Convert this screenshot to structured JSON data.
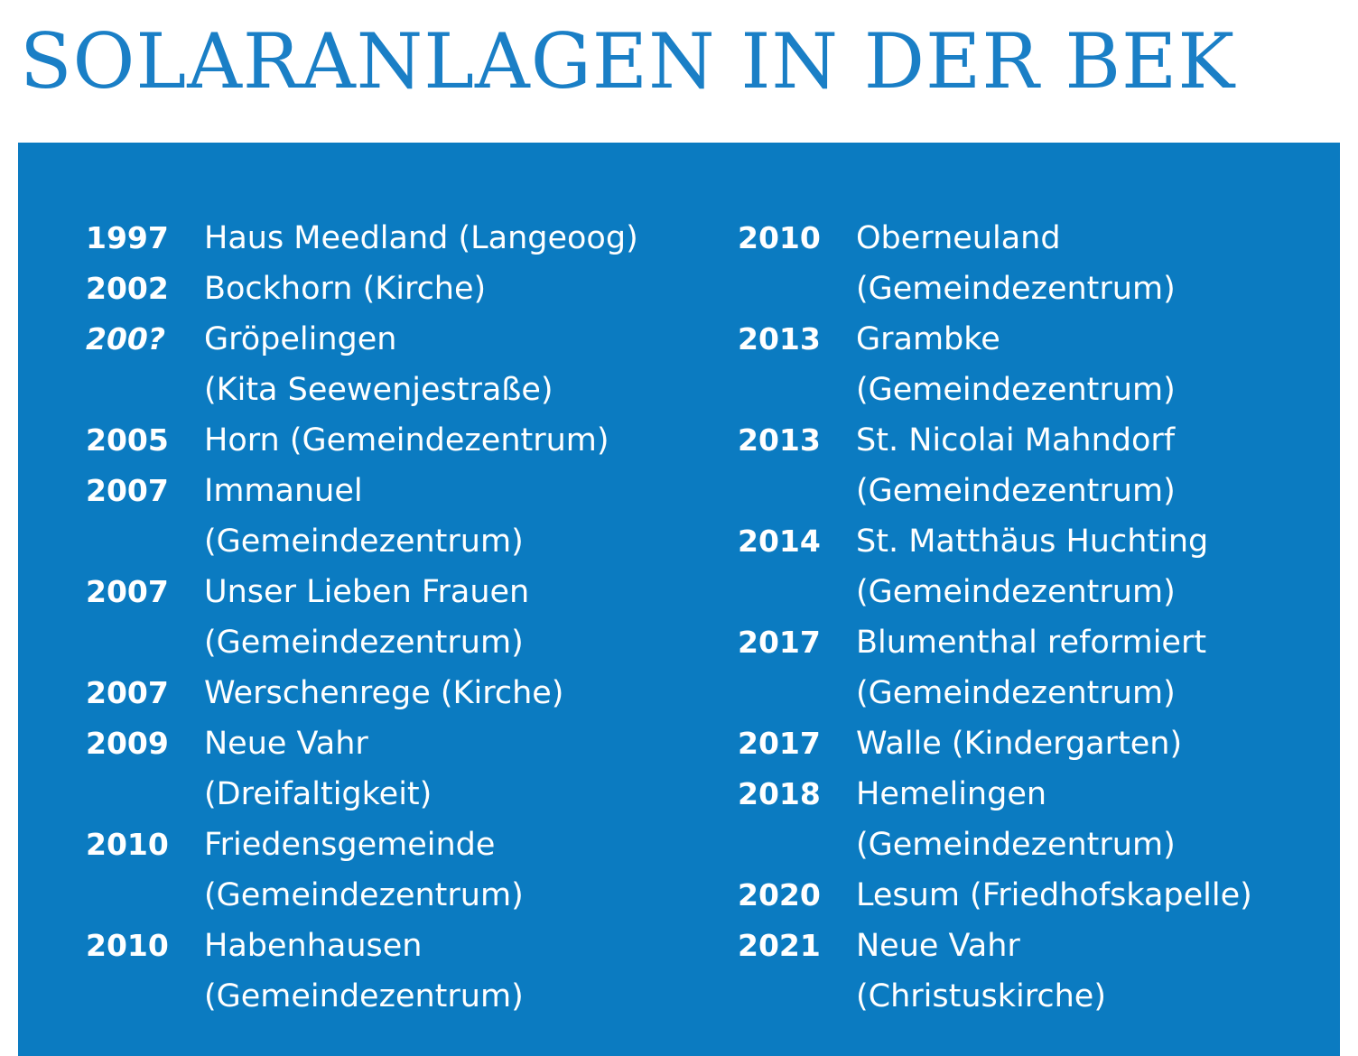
{
  "title": "SOLARANLAGEN IN DER BEK",
  "colors": {
    "title": "#1a7fc6",
    "panel": "#0b7bc1",
    "text": "#ffffff"
  },
  "left_column": [
    {
      "year": "1997",
      "lines": [
        "Haus Meedland (Langeoog)"
      ]
    },
    {
      "year": "2002",
      "lines": [
        "Bockhorn (Kirche)"
      ]
    },
    {
      "year": "200?",
      "lines": [
        "Gröpelingen",
        "(Kita Seewenjestraße)"
      ]
    },
    {
      "year": "2005",
      "lines": [
        "Horn (Gemeindezentrum)"
      ]
    },
    {
      "year": "2007",
      "lines": [
        "Immanuel",
        "(Gemeindezentrum)"
      ]
    },
    {
      "year": "2007",
      "lines": [
        "Unser Lieben Frauen",
        "(Gemeindezentrum)"
      ]
    },
    {
      "year": "2007",
      "lines": [
        "Werschenrege (Kirche)"
      ]
    },
    {
      "year": "2009",
      "lines": [
        "Neue Vahr",
        "(Dreifaltigkeit)"
      ]
    },
    {
      "year": "2010",
      "lines": [
        "Friedensgemeinde",
        "(Gemeindezentrum)"
      ]
    },
    {
      "year": "2010",
      "lines": [
        "Habenhausen",
        "(Gemeindezentrum)"
      ]
    }
  ],
  "right_column": [
    {
      "year": "2010",
      "lines": [
        "Oberneuland",
        "(Gemeindezentrum)"
      ]
    },
    {
      "year": "2013",
      "lines": [
        "Grambke",
        "(Gemeindezentrum)"
      ]
    },
    {
      "year": "2013",
      "lines": [
        "St. Nicolai Mahndorf",
        "(Gemeindezentrum)"
      ]
    },
    {
      "year": "2014",
      "lines": [
        "St. Matthäus Huchting",
        "(Gemeindezentrum)"
      ]
    },
    {
      "year": "2017",
      "lines": [
        "Blumenthal reformiert",
        "(Gemeindezentrum)"
      ]
    },
    {
      "year": "2017",
      "lines": [
        "Walle (Kindergarten)"
      ]
    },
    {
      "year": "2018",
      "lines": [
        "Hemelingen",
        "(Gemeindezentrum)"
      ]
    },
    {
      "year": "2020",
      "lines": [
        "Lesum (Friedhofskapelle)"
      ]
    },
    {
      "year": "2021",
      "lines": [
        "Neue Vahr",
        "(Christuskirche)"
      ]
    }
  ]
}
